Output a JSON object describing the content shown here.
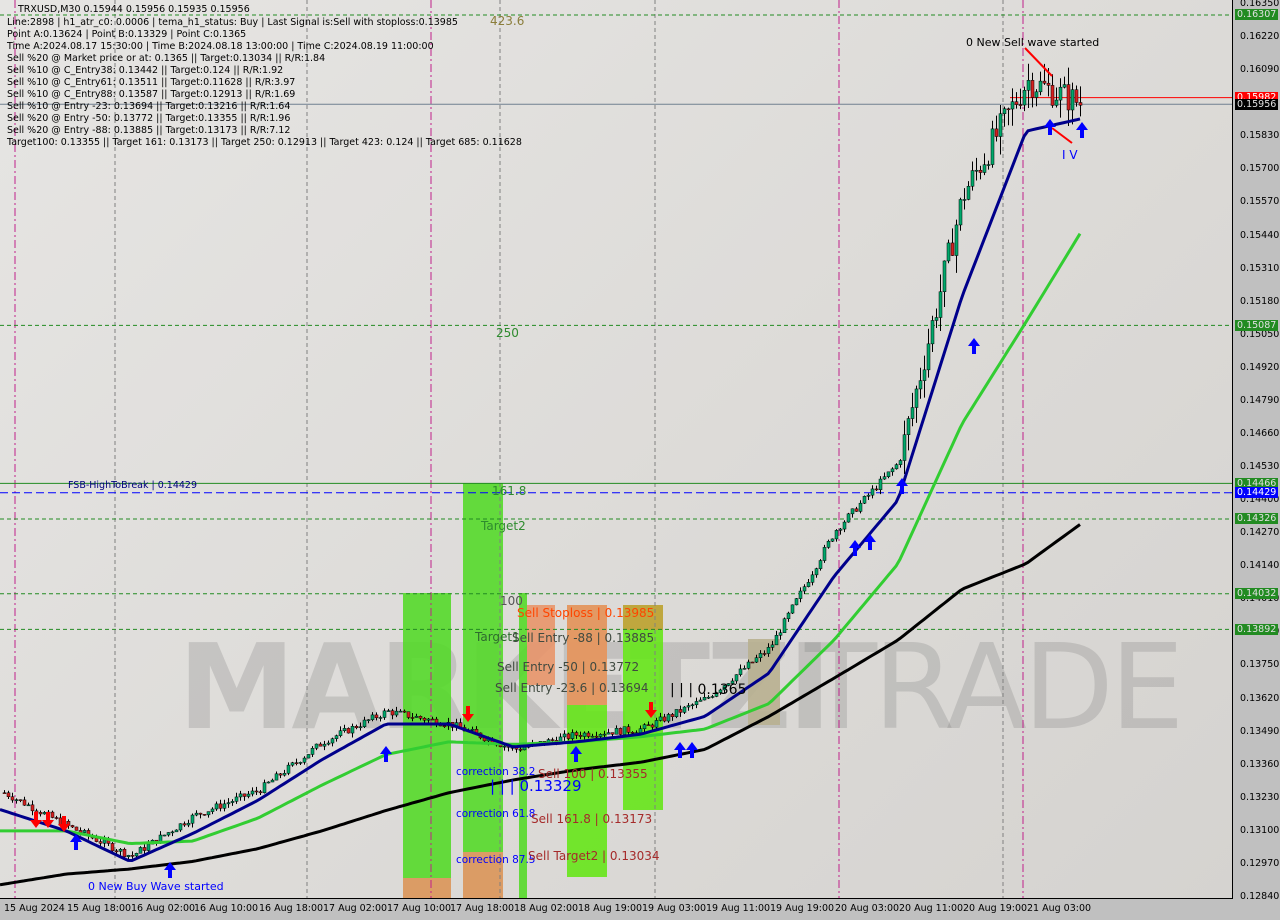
{
  "header": {
    "title": "TRXUSD,M30  0.15944 0.15956 0.15935 0.15956"
  },
  "info_lines": [
    "Line:2898 | h1_atr_c0: 0.0006 | tema_h1_status: Buy | Last Signal is:Sell with stoploss:0.13985",
    "Point A:0.13624 | Point B:0.13329 | Point C:0.1365",
    "Time A:2024.08.17 15:30:00 | Time B:2024.08.18 13:00:00 | Time C:2024.08.19 11:00:00",
    "Sell %20 @ Market price or at: 0.1365 || Target:0.13034 || R/R:1.84",
    "Sell %10 @ C_Entry38: 0.13442 || Target:0.124 || R/R:1.92",
    "Sell %10 @ C_Entry61: 0.13511 || Target:0.11628 || R/R:3.97",
    "Sell %10 @ C_Entry88: 0.13587 || Target:0.12913 || R/R:1.69",
    "Sell %10 @ Entry -23: 0.13694 || Target:0.13216 || R/R:1.64",
    "Sell %20 @ Entry -50: 0.13772 || Target:0.13355 || R/R:1.96",
    "Sell %20 @ Entry -88: 0.13885 || Target:0.13173 || R/R:7.12",
    "Target100: 0.13355 || Target 161: 0.13173 || Target 250: 0.12913 || Target 423: 0.124 || Target 685: 0.11628"
  ],
  "watermark": {
    "part1": "MARKETZI",
    "part2": "TRADE"
  },
  "price_ticks": [
    "0.16350",
    "0.16220",
    "0.16090",
    "0.15830",
    "0.15700",
    "0.15570",
    "0.15440",
    "0.15310",
    "0.15180",
    "0.15050",
    "0.14920",
    "0.14790",
    "0.14660",
    "0.14530",
    "0.14400",
    "0.14270",
    "0.14140",
    "0.14010",
    "0.13880",
    "0.13750",
    "0.13620",
    "0.13490",
    "0.13360",
    "0.13230",
    "0.13100",
    "0.12970",
    "0.12840"
  ],
  "price_badges": [
    {
      "value": "0.16307",
      "bg": "#228b22",
      "fg": "#e0e0e0"
    },
    {
      "value": "0.15982",
      "bg": "#ff0000",
      "fg": "#ffffff"
    },
    {
      "value": "0.15956",
      "bg": "#000000",
      "fg": "#e0e0e0"
    },
    {
      "value": "0.15087",
      "bg": "#228b22",
      "fg": "#e0e0e0"
    },
    {
      "value": "0.14466",
      "bg": "#228b22",
      "fg": "#e0e0e0"
    },
    {
      "value": "0.14429",
      "bg": "#0000ff",
      "fg": "#ffffff"
    },
    {
      "value": "0.14326",
      "bg": "#228b22",
      "fg": "#e0e0e0"
    },
    {
      "value": "0.14032",
      "bg": "#228b22",
      "fg": "#e0e0e0"
    },
    {
      "value": "0.13892",
      "bg": "#228b22",
      "fg": "#e0e0e0"
    }
  ],
  "time_ticks": [
    "15 Aug 2024",
    "15 Aug 18:00",
    "16 Aug 02:00",
    "16 Aug 10:00",
    "16 Aug 18:00",
    "17 Aug 02:00",
    "17 Aug 10:00",
    "17 Aug 18:00",
    "18 Aug 02:00",
    "18 Aug 19:00",
    "19 Aug 03:00",
    "19 Aug 11:00",
    "19 Aug 19:00",
    "20 Aug 03:00",
    "20 Aug 11:00",
    "20 Aug 19:00",
    "21 Aug 03:00"
  ],
  "annotations": {
    "fib_423": "423.6",
    "fib_250": "250",
    "fib_161": "161.8",
    "target2": "Target2",
    "fib_100": "100",
    "target1": "Target1",
    "sell_stoploss": "Sell Stoploss | 0.13985",
    "sell_entry_88": "Sell Entry -88 | 0.13885",
    "sell_entry_50": "Sell Entry -50 | 0.13772",
    "sell_entry_23": "Sell Entry -23.6 | 0.13694",
    "point_c": "| | | 0.1365",
    "correction_38": "correction 38.2",
    "point_b": "| | | 0.13329",
    "sell_100": "Sell 100 | 0.13355",
    "correction_61": "correction 61.8",
    "sell_161": "Sell 161.8 | 0.13173",
    "correction_87": "correction 87.5",
    "sell_target2": "Sell Target2 | 0.13034",
    "fsb": "FSB-HighToBreak | 0.14429",
    "new_buy": "0 New Buy Wave started",
    "new_sell": "0 New Sell wave started",
    "wave_iv": "I V"
  },
  "colors": {
    "bull": "#00a86b",
    "bear": "#d62020",
    "fast_ma": "#00008b",
    "mid_ma": "#32cd32",
    "slow_ma": "#000000",
    "zone_green": "#4fd62a",
    "zone_orange": "#e8956a",
    "level_green": "#228b22",
    "fsb_blue": "#0000ff"
  },
  "chart_data": {
    "type": "candlestick",
    "symbol": "TRXUSD",
    "timeframe": "M30",
    "ylim": [
      0.1284,
      0.1635
    ],
    "x": [
      "15 Aug 2024",
      "15 Aug 18:00",
      "16 Aug 02:00",
      "16 Aug 10:00",
      "16 Aug 18:00",
      "17 Aug 02:00",
      "17 Aug 10:00",
      "17 Aug 18:00",
      "18 Aug 02:00",
      "18 Aug 19:00",
      "19 Aug 03:00",
      "19 Aug 11:00",
      "19 Aug 19:00",
      "20 Aug 03:00",
      "20 Aug 11:00",
      "20 Aug 19:00",
      "21 Aug 03:00",
      "21 Aug 10:00"
    ],
    "close_approx": [
      0.1325,
      0.1312,
      0.13,
      0.1316,
      0.1326,
      0.1345,
      0.1357,
      0.1352,
      0.1342,
      0.1348,
      0.135,
      0.1362,
      0.1382,
      0.1428,
      0.1455,
      0.156,
      0.1605,
      0.15956
    ],
    "fast_ma": [
      0.1318,
      0.131,
      0.1298,
      0.1309,
      0.1322,
      0.1338,
      0.1352,
      0.1352,
      0.1343,
      0.1345,
      0.1348,
      0.1355,
      0.1372,
      0.141,
      0.144,
      0.152,
      0.1585,
      0.159
    ],
    "mid_ma": [
      0.131,
      0.131,
      0.1305,
      0.1306,
      0.1315,
      0.1328,
      0.134,
      0.1345,
      0.1344,
      0.1345,
      0.1347,
      0.135,
      0.136,
      0.1385,
      0.1415,
      0.147,
      0.151,
      0.1546
    ],
    "slow_ma": [
      0.1289,
      0.1293,
      0.1295,
      0.1298,
      0.1303,
      0.131,
      0.1318,
      0.1325,
      0.133,
      0.1334,
      0.1337,
      0.1342,
      0.1355,
      0.137,
      0.1385,
      0.1405,
      0.1415,
      0.1431
    ],
    "levels": [
      0.16307,
      0.15982,
      0.15956,
      0.15087,
      0.14466,
      0.14429,
      0.14326,
      0.14032,
      0.13892
    ]
  }
}
